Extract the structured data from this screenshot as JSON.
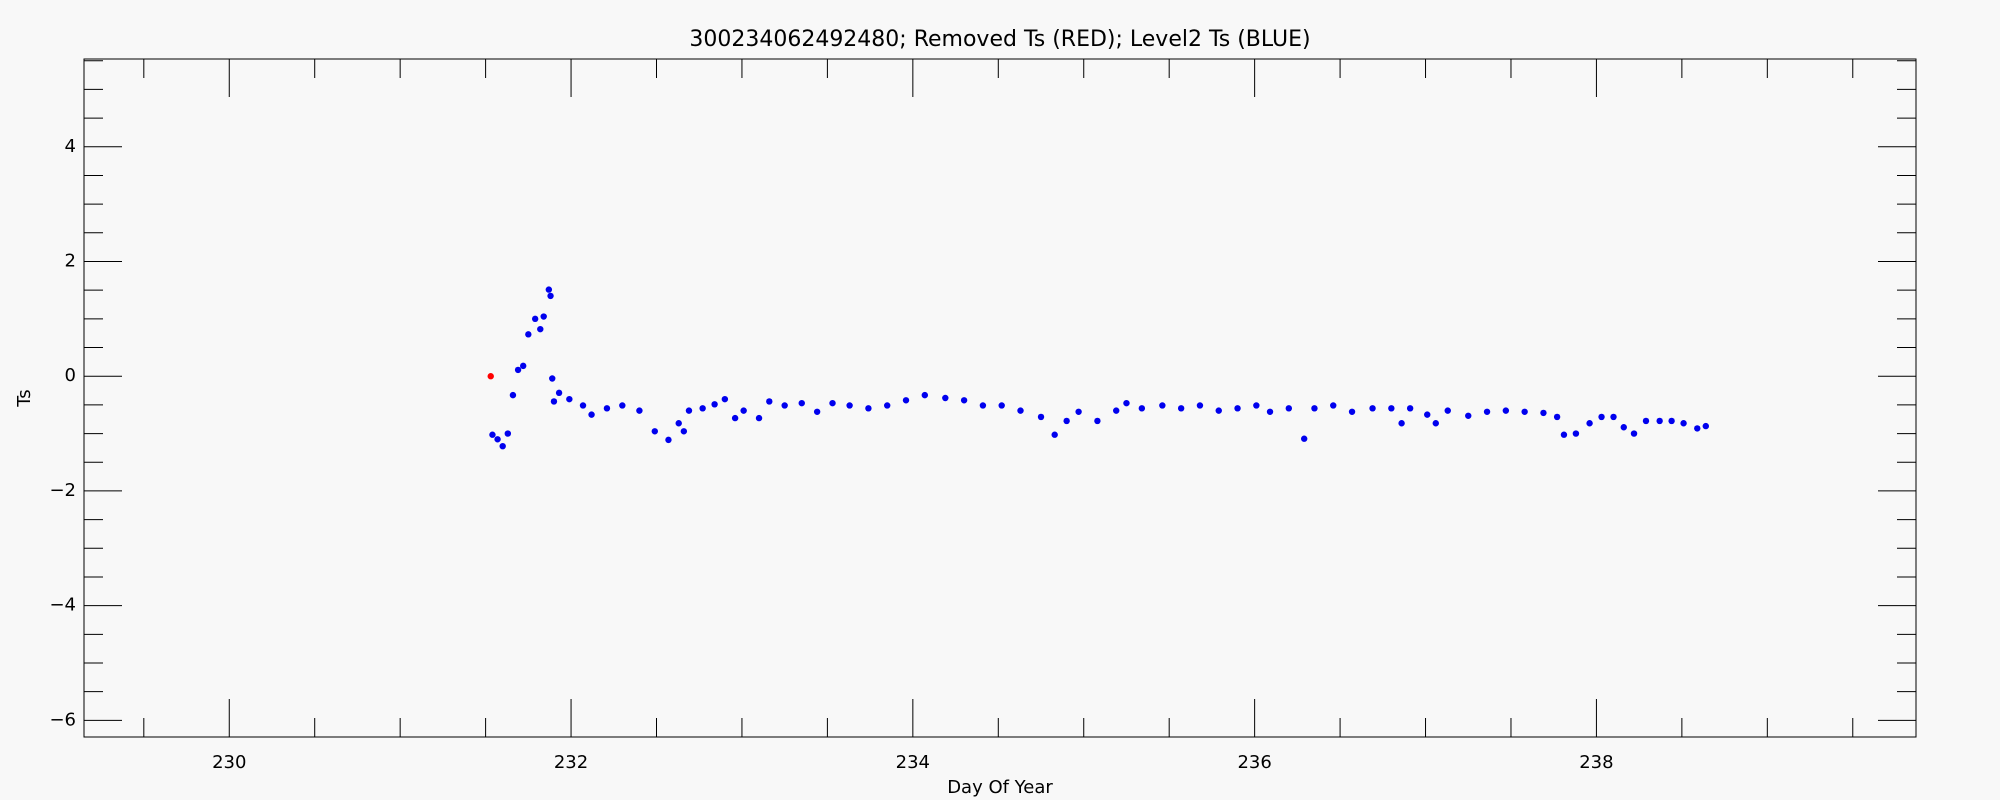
{
  "chart_data": {
    "type": "scatter",
    "title": "300234062492480; Removed Ts (RED); Level2 Ts (BLUE)",
    "xlabel": "Day Of Year",
    "ylabel": "Ts",
    "xlim": [
      229.15,
      239.87
    ],
    "ylim": [
      -6.29,
      5.53
    ],
    "xticks": [
      230,
      232,
      234,
      236,
      238
    ],
    "yticks": [
      -6,
      -4,
      -2,
      0,
      2,
      4
    ],
    "xminorticks": [
      229.5,
      230.5,
      231,
      231.5,
      232.5,
      233,
      233.5,
      234.5,
      235,
      235.5,
      236.5,
      237,
      237.5,
      238.5,
      239,
      239.5
    ],
    "yminorticks": [
      -5.5,
      -5,
      -4.5,
      -3.5,
      -3,
      -2.5,
      -1.5,
      -1,
      -0.5,
      0.5,
      1,
      1.5,
      2.5,
      3,
      3.5,
      4.5,
      5,
      5.5
    ],
    "series": [
      {
        "color": "#ff0000",
        "x": [
          231.53
        ],
        "values": [
          0
        ]
      },
      {
        "color": "#0000ee",
        "x": [
          231.54,
          231.57,
          231.6,
          231.63,
          231.66,
          231.69,
          231.72,
          231.75,
          231.79,
          231.82,
          231.84,
          231.87,
          231.88,
          231.89,
          231.9,
          231.93,
          231.99,
          232.07,
          232.12,
          232.21,
          232.3,
          232.4,
          232.49,
          232.57,
          232.63,
          232.66,
          232.69,
          232.77,
          232.84,
          232.9,
          232.96,
          233.01,
          233.1,
          233.16,
          233.25,
          233.35,
          233.44,
          233.53,
          233.63,
          233.74,
          233.85,
          233.96,
          234.07,
          234.19,
          234.3,
          234.41,
          234.52,
          234.63,
          234.75,
          234.83,
          234.9,
          234.97,
          235.08,
          235.19,
          235.25,
          235.34,
          235.46,
          235.57,
          235.68,
          235.79,
          235.9,
          236.01,
          236.09,
          236.2,
          236.29,
          236.35,
          236.46,
          236.57,
          236.69,
          236.8,
          236.86,
          236.91,
          237.01,
          237.06,
          237.13,
          237.25,
          237.36,
          237.47,
          237.58,
          237.69,
          237.77,
          237.81,
          237.88,
          237.96,
          238.03,
          238.1,
          238.16,
          238.22,
          238.29,
          238.37,
          238.44,
          238.51,
          238.59,
          238.64
        ],
        "values": [
          -1.02,
          -1.1,
          -1.22,
          -1.0,
          -0.33,
          0.11,
          0.18,
          0.73,
          1.0,
          0.82,
          1.04,
          1.51,
          1.4,
          -0.04,
          -0.44,
          -0.29,
          -0.4,
          -0.51,
          -0.67,
          -0.56,
          -0.51,
          -0.6,
          -0.96,
          -1.11,
          -0.82,
          -0.96,
          -0.6,
          -0.56,
          -0.49,
          -0.4,
          -0.73,
          -0.6,
          -0.73,
          -0.44,
          -0.51,
          -0.47,
          -0.62,
          -0.47,
          -0.51,
          -0.56,
          -0.51,
          -0.42,
          -0.33,
          -0.38,
          -0.42,
          -0.51,
          -0.51,
          -0.6,
          -0.71,
          -1.02,
          -0.78,
          -0.62,
          -0.78,
          -0.6,
          -0.47,
          -0.56,
          -0.51,
          -0.56,
          -0.51,
          -0.6,
          -0.56,
          -0.51,
          -0.62,
          -0.56,
          -1.09,
          -0.56,
          -0.51,
          -0.62,
          -0.56,
          -0.56,
          -0.82,
          -0.56,
          -0.67,
          -0.82,
          -0.6,
          -0.69,
          -0.62,
          -0.6,
          -0.62,
          -0.64,
          -0.71,
          -1.02,
          -1.0,
          -0.82,
          -0.71,
          -0.71,
          -0.89,
          -1.0,
          -0.78,
          -0.78,
          -0.78,
          -0.82,
          -0.91,
          -0.87
        ]
      }
    ]
  }
}
